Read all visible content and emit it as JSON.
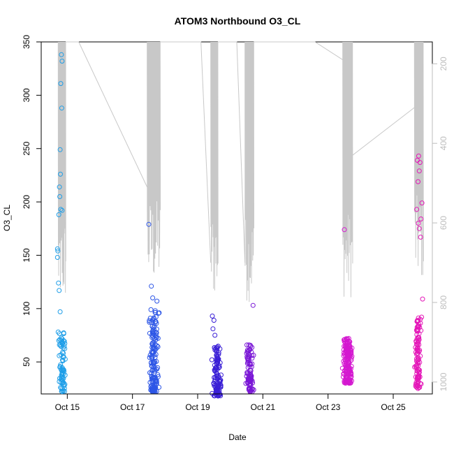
{
  "chart_data": {
    "type": "scatter",
    "title": "ATOM3 Northbound O3_CL",
    "xlabel": "Date",
    "ylabel": "O3_CL",
    "x_ticks": [
      "Oct 15",
      "Oct 17",
      "Oct 19",
      "Oct 21",
      "Oct 23",
      "Oct 25"
    ],
    "x_tick_days": [
      15,
      17,
      19,
      21,
      23,
      25
    ],
    "xlim_days": [
      14.2,
      26.2
    ],
    "ylim": [
      20,
      350
    ],
    "y_ticks": [
      50,
      100,
      150,
      200,
      250,
      300,
      350
    ],
    "y_right_ticks": [
      200,
      400,
      600,
      800,
      1000
    ],
    "y_right_lim": [
      1030,
      145
    ],
    "grid": false,
    "legend": "none",
    "colors": {
      "cluster1": "#1e9ee8",
      "cluster2": "#2d56e6",
      "cluster3": "#3a1fd6",
      "cluster4": "#7a17d6",
      "cluster5": "#d418d0",
      "cluster6": "#e418b8",
      "pressure_line": "#c8c8c8"
    },
    "clusters": [
      {
        "color_key": "cluster1",
        "x_center": 14.85,
        "x_spread": 0.09,
        "dense_range": [
          22,
          78
        ],
        "n_dense": 70,
        "extra_points": [
          [
            14.82,
            338
          ],
          [
            14.84,
            332
          ],
          [
            14.8,
            311
          ],
          [
            14.83,
            288
          ],
          [
            14.78,
            249
          ],
          [
            14.79,
            226
          ],
          [
            14.76,
            214
          ],
          [
            14.77,
            205
          ],
          [
            14.8,
            193
          ],
          [
            14.84,
            192
          ],
          [
            14.74,
            188
          ],
          [
            14.7,
            156
          ],
          [
            14.71,
            154
          ],
          [
            14.7,
            148
          ],
          [
            14.73,
            124
          ],
          [
            14.75,
            117
          ],
          [
            14.78,
            97
          ],
          [
            14.72,
            78
          ],
          [
            14.74,
            70
          ],
          [
            14.76,
            66
          ]
        ]
      },
      {
        "color_key": "cluster2",
        "x_center": 17.65,
        "x_spread": 0.13,
        "dense_range": [
          22,
          100
        ],
        "n_dense": 150,
        "extra_points": [
          [
            17.5,
            179
          ],
          [
            17.58,
            121
          ],
          [
            17.62,
            110
          ],
          [
            17.75,
            107
          ],
          [
            17.7,
            98
          ],
          [
            17.82,
            96
          ]
        ]
      },
      {
        "color_key": "cluster3",
        "x_center": 19.6,
        "x_spread": 0.13,
        "dense_range": [
          18,
          66
        ],
        "n_dense": 110,
        "extra_points": [
          [
            19.45,
            93
          ],
          [
            19.5,
            89
          ],
          [
            19.47,
            81
          ],
          [
            19.53,
            75
          ]
        ]
      },
      {
        "color_key": "cluster4",
        "x_center": 20.6,
        "x_spread": 0.1,
        "dense_range": [
          22,
          68
        ],
        "n_dense": 90,
        "extra_points": [
          [
            20.7,
            103
          ]
        ]
      },
      {
        "color_key": "cluster5",
        "x_center": 23.6,
        "x_spread": 0.14,
        "dense_range": [
          30,
          72
        ],
        "n_dense": 170,
        "extra_points": [
          [
            23.5,
            174
          ]
        ]
      },
      {
        "color_key": "cluster6",
        "x_center": 25.75,
        "x_spread": 0.09,
        "dense_range": [
          25,
          92
        ],
        "n_dense": 110,
        "extra_points": [
          [
            25.78,
            243
          ],
          [
            25.74,
            239
          ],
          [
            25.82,
            237
          ],
          [
            25.8,
            229
          ],
          [
            25.76,
            219
          ],
          [
            25.88,
            199
          ],
          [
            25.72,
            193
          ],
          [
            25.85,
            184
          ],
          [
            25.77,
            180
          ],
          [
            25.8,
            175
          ],
          [
            25.84,
            167
          ],
          [
            25.9,
            109
          ],
          [
            25.87,
            92
          ],
          [
            25.83,
            90
          ],
          [
            25.72,
            80
          ]
        ]
      }
    ],
    "pressure_profile": {
      "description": "grey line on right axis",
      "segments": [
        {
          "x_range": [
            14.72,
            14.95
          ],
          "top": 145,
          "bottom": 800,
          "n": 22
        },
        {
          "x_range": [
            17.45,
            17.85
          ],
          "top": 145,
          "bottom": 760,
          "n": 20
        },
        {
          "x_range": [
            19.4,
            19.62
          ],
          "top": 145,
          "bottom": 790,
          "n": 14
        },
        {
          "x_range": [
            20.45,
            20.72
          ],
          "top": 145,
          "bottom": 800,
          "n": 16
        },
        {
          "x_range": [
            23.45,
            23.75
          ],
          "top": 145,
          "bottom": 790,
          "n": 18
        },
        {
          "x_range": [
            25.65,
            25.92
          ],
          "top": 145,
          "bottom": 750,
          "n": 16
        }
      ],
      "connectors": [
        [
          [
            14.95,
            145
          ],
          [
            15.35,
            145
          ],
          [
            17.45,
            510
          ]
        ],
        [
          [
            17.85,
            145
          ],
          [
            19.1,
            145
          ],
          [
            19.4,
            700
          ]
        ],
        [
          [
            19.62,
            145
          ],
          [
            20.2,
            145
          ],
          [
            20.45,
            700
          ]
        ],
        [
          [
            20.72,
            145
          ],
          [
            22.6,
            145
          ],
          [
            23.45,
            190
          ]
        ],
        [
          [
            23.75,
            430
          ],
          [
            25.65,
            310
          ]
        ]
      ]
    }
  }
}
